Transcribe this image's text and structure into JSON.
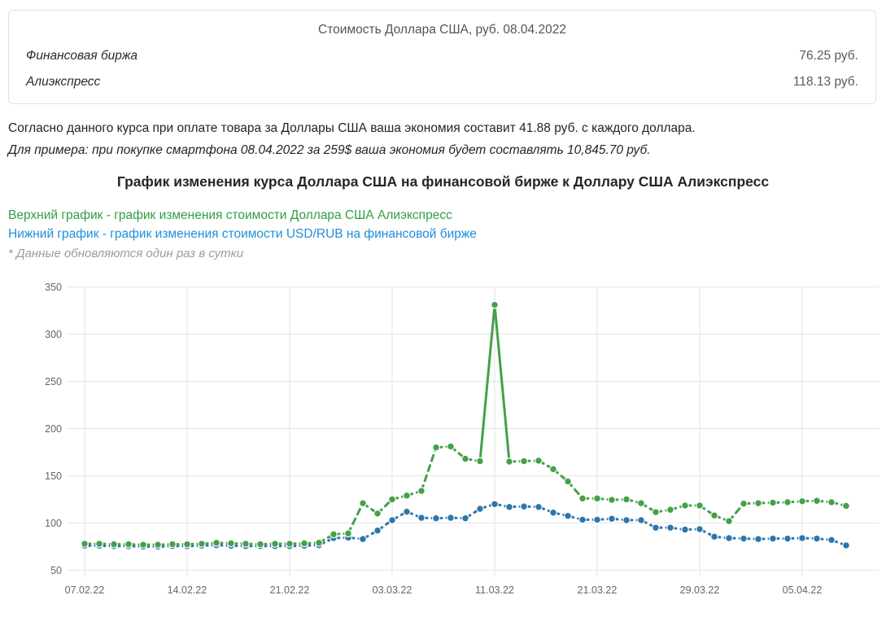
{
  "rates_box": {
    "title": "Стоимость Доллара США, руб. 08.04.2022",
    "rows": [
      {
        "label": "Финансовая биржа",
        "value": "76.25 руб."
      },
      {
        "label": "Алиэкспресс",
        "value": "118.13 руб."
      }
    ]
  },
  "summary": {
    "line1": "Согласно данного курса при оплате товара за Доллары США ваша экономия составит 41.88 руб. с каждого доллара.",
    "line2": "Для примера: при покупке смартфона 08.04.2022 за 259$ ваша экономия будет составлять 10,845.70 руб."
  },
  "chart_section": {
    "heading": "График изменения курса Доллара США на финансовой бирже к Доллару США Алиэкспресс",
    "legend_top": "Верхний график - график изменения стоимости Доллара США Алиэкспресс",
    "legend_bottom": "Нижний график - график изменения стоимости USD/RUB на финансовой бирже",
    "note": "* Данные обновляются один раз в сутки"
  },
  "colors": {
    "series_aliexpress": "#45a049",
    "series_exchange": "#2d76ab",
    "legend_green_text": "#2f9e44",
    "legend_blue_text": "#1f8ed8",
    "grid": "#e9e9e9",
    "axis_text": "#666666"
  },
  "chart_data": {
    "type": "line",
    "title": "",
    "xlabel": "",
    "ylabel": "",
    "ylim": [
      50,
      350
    ],
    "y_ticks": [
      50,
      100,
      150,
      200,
      250,
      300,
      350
    ],
    "grid": true,
    "line_style": "dashed",
    "point_style": "circle",
    "legend_position": "above-chart-as-text",
    "x_tick_labels": [
      {
        "i": 0,
        "label": "07.02.22"
      },
      {
        "i": 7,
        "label": "14.02.22"
      },
      {
        "i": 14,
        "label": "21.02.22"
      },
      {
        "i": 21,
        "label": "03.03.22"
      },
      {
        "i": 28,
        "label": "11.03.22"
      },
      {
        "i": 35,
        "label": "21.03.22"
      },
      {
        "i": 42,
        "label": "29.03.22"
      },
      {
        "i": 49,
        "label": "05.04.22"
      }
    ],
    "series": [
      {
        "name": "Доллар США Алиэкспресс",
        "color": "#45a049",
        "values": [
          78,
          78,
          77.5,
          77.5,
          77,
          77,
          77.5,
          77.5,
          78,
          79,
          78.5,
          78,
          77.5,
          78,
          78,
          78.5,
          79,
          88,
          89,
          121,
          110,
          125,
          129,
          134,
          180,
          181,
          168,
          165.5,
          331,
          165,
          165.5,
          166,
          157,
          144,
          126,
          126,
          124.5,
          125,
          121,
          111.5,
          114,
          118.5,
          118.5,
          108,
          102,
          120.5,
          121,
          121.5,
          122,
          123,
          123.5,
          122,
          118.13
        ]
      },
      {
        "name": "USD/RUB на финансовой бирже",
        "color": "#2d76ab",
        "values": [
          76,
          76,
          75.5,
          75.5,
          75,
          75,
          75.5,
          75.5,
          76,
          76.5,
          76,
          75.5,
          75.5,
          75.5,
          75.5,
          76,
          76.5,
          84,
          84.5,
          83,
          92,
          103,
          112,
          105.5,
          105,
          105.5,
          105,
          115,
          120,
          117,
          117.5,
          117,
          111,
          107.5,
          103.5,
          103.5,
          104.5,
          103,
          103,
          95,
          95,
          93,
          93.5,
          85.5,
          84,
          83.5,
          83,
          83.5,
          83.5,
          84,
          83.5,
          82,
          76.25
        ]
      }
    ]
  }
}
